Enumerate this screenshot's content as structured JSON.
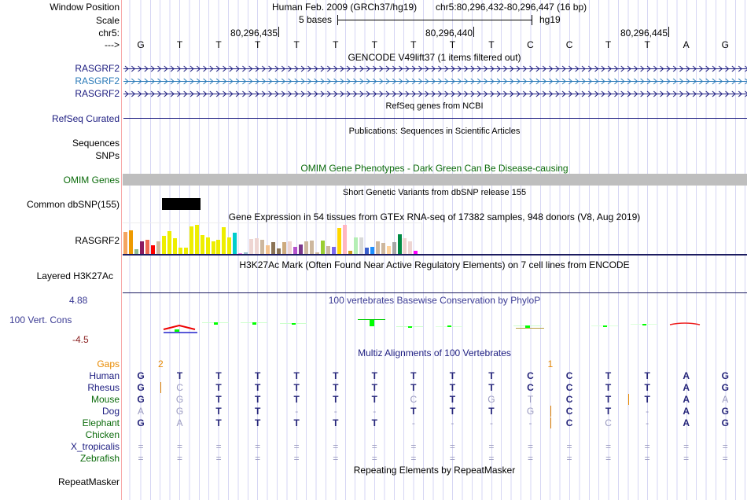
{
  "header": {
    "window_position_label": "Window Position",
    "assembly": "Human Feb. 2009 (GRCh37/hg19)",
    "position": "chr5:80,296,432-80,296,447 (16 bp)",
    "scale_label": "Scale",
    "scale_text": "5 bases",
    "scale_db": "hg19",
    "chrom_label": "chr5:",
    "strand_label": "--->",
    "coord_ticks": [
      "80,296,435",
      "80,296,440",
      "80,296,445"
    ]
  },
  "sequence": "GTTTTTTTTTCCTTAG",
  "tracks": {
    "gencode_title": "GENCODE V49lift37 (1 items filtered out)",
    "gencode_items": [
      "RASGRF2",
      "RASGRF2",
      "RASGRF2"
    ],
    "refseq_title": "RefSeq genes from NCBI",
    "refseq_label": "RefSeq Curated",
    "pubs_title": "Publications: Sequences in Scientific Articles",
    "pubs_labels": [
      "Sequences",
      "SNPs"
    ],
    "omim_title": "OMIM Gene Phenotypes - Dark Green Can Be Disease-causing",
    "omim_label": "OMIM Genes",
    "snp_title": "Short Genetic Variants from dbSNP release 155",
    "snp_label": "Common dbSNP(155)",
    "gtex_title": "Gene Expression in 54 tissues from GTEx RNA-seq of 17382 samples, 948 donors (V8, Aug 2019)",
    "gtex_label": "RASGRF2",
    "h3k27_title": "H3K27Ac Mark (Often Found Near Active Regulatory Elements) on 7 cell lines from ENCODE",
    "h3k27_label": "Layered H3K27Ac",
    "phylop_title": "100 vertebrates Basewise Conservation by PhyloP",
    "phylop_label": "100 Vert. Cons",
    "phylop_max": "4.88",
    "phylop_min": "-4.5",
    "multiz_title": "Multiz Alignments of 100 Vertebrates",
    "gaps_label": "Gaps",
    "gaps": [
      {
        "after": 0,
        "count": "2"
      },
      {
        "after": 10,
        "count": "1"
      }
    ],
    "repeat_title": "Repeating Elements by RepeatMasker",
    "repeat_label": "RepeatMasker"
  },
  "gtex": {
    "values": [
      90,
      95,
      20,
      53,
      59,
      38,
      53,
      74,
      92,
      65,
      26,
      29,
      110,
      116,
      77,
      68,
      53,
      59,
      107,
      68,
      86,
      5,
      8,
      62,
      65,
      59,
      38,
      50,
      23,
      50,
      53,
      32,
      41,
      53,
      56,
      8,
      56,
      35,
      32,
      104,
      116,
      14,
      68,
      68,
      29,
      32,
      53,
      47,
      35,
      50,
      80,
      65,
      53,
      14
    ],
    "colors": [
      "#f4a460",
      "#ee9a00",
      "#8fbc8f",
      "#8b1c62",
      "#ee6a50",
      "#ff0000",
      "#cdb79e",
      "#eeee00",
      "#eeee00",
      "#eeee00",
      "#eeee00",
      "#eeee00",
      "#eeee00",
      "#eeee00",
      "#eeee00",
      "#eeee00",
      "#eeee00",
      "#eeee00",
      "#eeee00",
      "#eeee00",
      "#00cdcd",
      "#ee82ee",
      "#9ac0cd",
      "#eed5d2",
      "#eed5d2",
      "#cdb79e",
      "#f4c28e",
      "#8b7355",
      "#8b7355",
      "#cdaa7d",
      "#eed5d2",
      "#b452cd",
      "#7a378b",
      "#cdb79e",
      "#cdb79e",
      "#cdb79e",
      "#9acd32",
      "#cdb79e",
      "#7b68ee",
      "#ffd700",
      "#ffb6c1",
      "#cd9b1d",
      "#b4eeb4",
      "#d9d9d9",
      "#3a5fcd",
      "#1e90ff",
      "#cdb79e",
      "#cdb79e",
      "#ffd39b",
      "#a6a6a6",
      "#008b45",
      "#eed5d2",
      "#eed5d2",
      "#ff00ff"
    ]
  },
  "alignment": {
    "species": [
      {
        "name": "Human",
        "seq": "GTTTTTTTTTCCTTAG",
        "color": "navy"
      },
      {
        "name": "Rhesus",
        "seq": "GCTTTTTTTTCCTTAG",
        "color": "navy",
        "ins": [
          0
        ]
      },
      {
        "name": "Mouse",
        "seq": "GGTTTTTCTGTCTTAA",
        "color": "green",
        "ins": [
          12
        ]
      },
      {
        "name": "Dog",
        "seq": "AGTT---TTTGCT-AG",
        "color": "navy",
        "ins": [
          10
        ]
      },
      {
        "name": "Elephant",
        "seq": "GATTTTT----CC-AG",
        "color": "green",
        "ins": [
          10
        ]
      },
      {
        "name": "Chicken",
        "seq": "",
        "color": "green"
      },
      {
        "name": "X_tropicalis",
        "seq": "================",
        "color": "navy"
      },
      {
        "name": "Zebrafish",
        "seq": "================",
        "color": "green"
      }
    ]
  },
  "colors": {
    "navy": "#1c1c80",
    "green": "#0b6b0b",
    "gaps": "#e88a00",
    "omim_bar": "#bebebe",
    "gene_alt": "#2a7ab8"
  }
}
